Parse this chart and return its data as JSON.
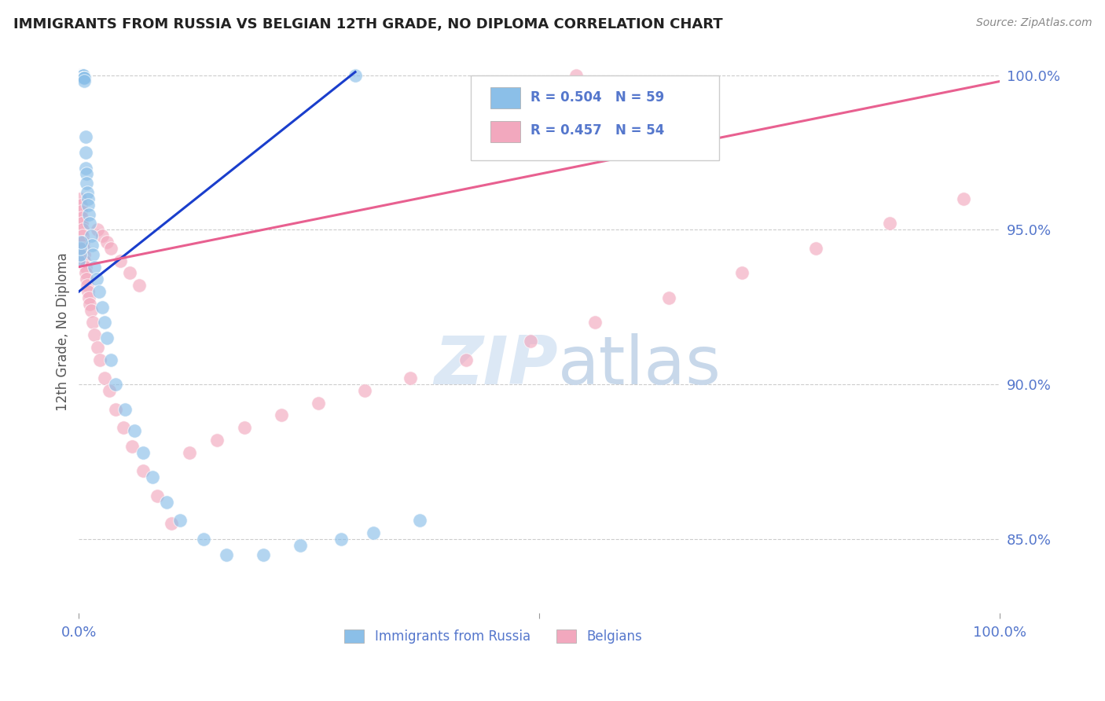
{
  "title": "IMMIGRANTS FROM RUSSIA VS BELGIAN 12TH GRADE, NO DIPLOMA CORRELATION CHART",
  "source": "Source: ZipAtlas.com",
  "ylabel": "12th Grade, No Diploma",
  "legend_label_blue": "Immigrants from Russia",
  "legend_label_pink": "Belgians",
  "legend_R_blue": "R = 0.504",
  "legend_N_blue": "N = 59",
  "legend_R_pink": "R = 0.457",
  "legend_N_pink": "N = 54",
  "xlim": [
    0.0,
    1.0
  ],
  "ylim": [
    0.826,
    1.008
  ],
  "yticks": [
    0.85,
    0.9,
    0.95,
    1.0
  ],
  "ytick_labels": [
    "85.0%",
    "90.0%",
    "95.0%",
    "100.0%"
  ],
  "color_blue": "#8bbfe8",
  "color_pink": "#f2a8be",
  "color_line_blue": "#1a3ecc",
  "color_line_pink": "#e86090",
  "color_grid": "#cccccc",
  "color_title": "#222222",
  "color_axis_labels": "#5577cc",
  "background_color": "#ffffff",
  "watermark_color": "#dce8f5",
  "blue_scatter_x": [
    0.001,
    0.001,
    0.002,
    0.002,
    0.002,
    0.002,
    0.003,
    0.003,
    0.003,
    0.003,
    0.004,
    0.004,
    0.004,
    0.005,
    0.005,
    0.005,
    0.005,
    0.006,
    0.006,
    0.006,
    0.007,
    0.007,
    0.007,
    0.008,
    0.008,
    0.009,
    0.01,
    0.01,
    0.011,
    0.012,
    0.013,
    0.014,
    0.015,
    0.017,
    0.019,
    0.022,
    0.025,
    0.028,
    0.03,
    0.035,
    0.04,
    0.05,
    0.06,
    0.07,
    0.08,
    0.095,
    0.11,
    0.135,
    0.16,
    0.2,
    0.24,
    0.285,
    0.32,
    0.37,
    0.0,
    0.001,
    0.001,
    0.002,
    0.3
  ],
  "blue_scatter_y": [
    1.0,
    1.0,
    1.0,
    1.0,
    1.0,
    1.0,
    1.0,
    1.0,
    1.0,
    1.0,
    1.0,
    1.0,
    1.0,
    1.0,
    1.0,
    0.999,
    0.999,
    0.999,
    0.999,
    0.998,
    0.98,
    0.975,
    0.97,
    0.968,
    0.965,
    0.962,
    0.96,
    0.958,
    0.955,
    0.952,
    0.948,
    0.945,
    0.942,
    0.938,
    0.934,
    0.93,
    0.925,
    0.92,
    0.915,
    0.908,
    0.9,
    0.892,
    0.885,
    0.878,
    0.87,
    0.862,
    0.856,
    0.85,
    0.845,
    0.845,
    0.848,
    0.85,
    0.852,
    0.856,
    0.94,
    0.942,
    0.944,
    0.946,
    1.0
  ],
  "pink_scatter_x": [
    0.001,
    0.002,
    0.002,
    0.003,
    0.003,
    0.004,
    0.004,
    0.005,
    0.005,
    0.006,
    0.006,
    0.007,
    0.007,
    0.008,
    0.009,
    0.01,
    0.011,
    0.012,
    0.013,
    0.015,
    0.017,
    0.02,
    0.023,
    0.028,
    0.033,
    0.04,
    0.048,
    0.058,
    0.07,
    0.085,
    0.1,
    0.12,
    0.15,
    0.18,
    0.22,
    0.26,
    0.31,
    0.36,
    0.42,
    0.49,
    0.56,
    0.64,
    0.72,
    0.8,
    0.88,
    0.96,
    0.02,
    0.025,
    0.03,
    0.035,
    0.045,
    0.055,
    0.065,
    0.54
  ],
  "pink_scatter_y": [
    0.96,
    0.958,
    0.956,
    0.954,
    0.952,
    0.95,
    0.948,
    0.946,
    0.944,
    0.942,
    0.94,
    0.938,
    0.936,
    0.934,
    0.932,
    0.93,
    0.928,
    0.926,
    0.924,
    0.92,
    0.916,
    0.912,
    0.908,
    0.902,
    0.898,
    0.892,
    0.886,
    0.88,
    0.872,
    0.864,
    0.855,
    0.878,
    0.882,
    0.886,
    0.89,
    0.894,
    0.898,
    0.902,
    0.908,
    0.914,
    0.92,
    0.928,
    0.936,
    0.944,
    0.952,
    0.96,
    0.95,
    0.948,
    0.946,
    0.944,
    0.94,
    0.936,
    0.932,
    1.0
  ],
  "trendline_blue_x0": 0.0,
  "trendline_blue_x1": 0.3,
  "trendline_blue_y0": 0.93,
  "trendline_blue_y1": 1.001,
  "trendline_pink_x0": 0.0,
  "trendline_pink_x1": 1.0,
  "trendline_pink_y0": 0.938,
  "trendline_pink_y1": 0.998
}
